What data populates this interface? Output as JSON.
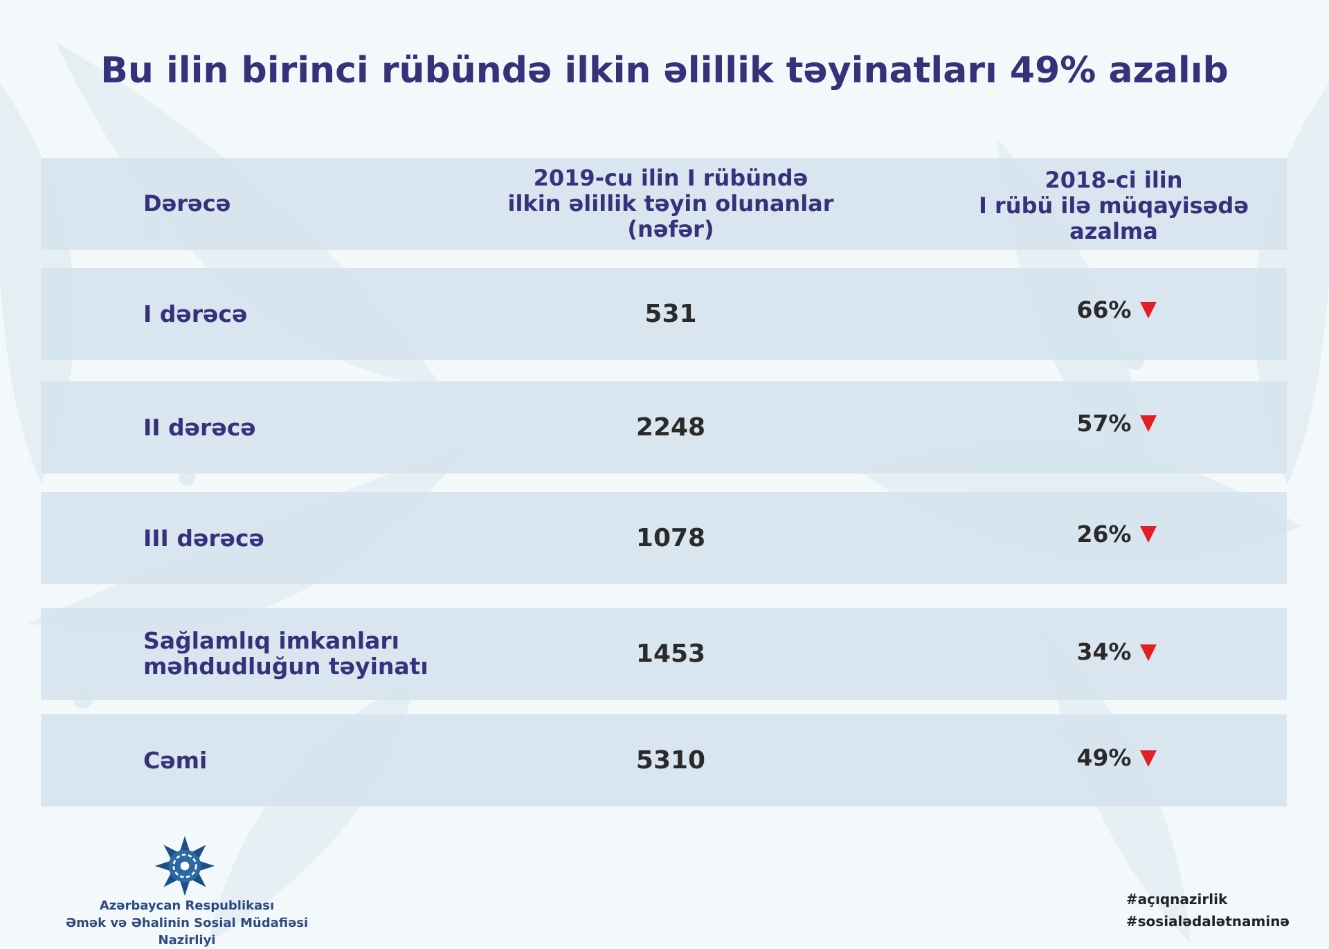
{
  "title": "Bu ilin birinci rübündə ilkin əlillik təyinatları 49% azalıb",
  "table": {
    "headers": {
      "degree": "Dərəcə",
      "count_line1": "2019-cu ilin I rübündə",
      "count_line2": "ilkin əlillik təyin olunanlar",
      "count_line3": "(nəfər)",
      "change_line1": "2018-ci ilin",
      "change_line2": "I rübü ilə müqayisədə",
      "change_line3": "azalma"
    },
    "rows": [
      {
        "label_line1": "I dərəcə",
        "label_line2": "",
        "count": "531",
        "change": "66%"
      },
      {
        "label_line1": "II dərəcə",
        "label_line2": "",
        "count": "2248",
        "change": "57%"
      },
      {
        "label_line1": "III dərəcə",
        "label_line2": "",
        "count": "1078",
        "change": "26%"
      },
      {
        "label_line1": "Sağlamlıq imkanları",
        "label_line2": "məhdudluğun təyinatı",
        "count": "1453",
        "change": "34%"
      },
      {
        "label_line1": "Cəmi",
        "label_line2": "",
        "count": "5310",
        "change": "49%"
      }
    ]
  },
  "footer": {
    "org_line1": "Azərbaycan Respublikası",
    "org_line2": "Əmək və Əhalinin Sosial Müdafiəsi Nazirliyi",
    "hashtag1": "#açıqnazirlik",
    "hashtag2": "#sosialədalətnaminə"
  },
  "colors": {
    "title": "#35327a",
    "row_background": "#d6e4ee",
    "decrease_arrow": "#e31e24",
    "page_background": "#f3f8fb"
  },
  "icons": {
    "decrease": "down-triangle-icon",
    "logo": "ministry-star-emblem-icon"
  }
}
